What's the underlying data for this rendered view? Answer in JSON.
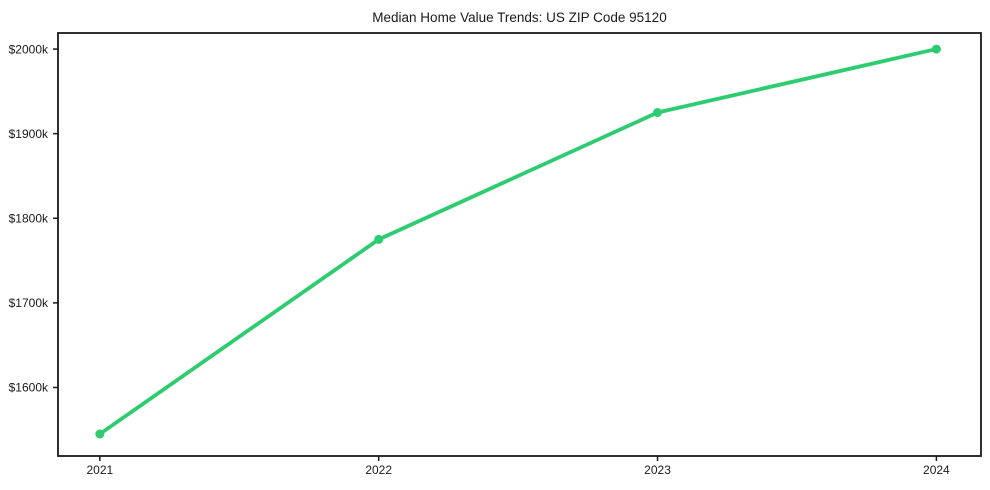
{
  "chart_data": {
    "type": "line",
    "title": "Median Home Value Trends: US ZIP Code 95120",
    "xlabel": "",
    "ylabel": "",
    "x": [
      2021,
      2022,
      2023,
      2024
    ],
    "x_tick_labels": [
      "2021",
      "2022",
      "2023",
      "2024"
    ],
    "series": [
      {
        "values": [
          1545,
          1775,
          1925,
          2000
        ],
        "color": "#2ecc71",
        "line_width": 3.8,
        "marker": "circle",
        "marker_size": 9
      }
    ],
    "y_ticks": [
      1600,
      1700,
      1800,
      1900,
      2000
    ],
    "y_tick_labels": [
      "$1600k",
      "$1700k",
      "$1800k",
      "$1900k",
      "$2000k"
    ],
    "value_unit": "USD thousands",
    "ylim": [
      1519,
      2019
    ],
    "xlim": [
      2020.85,
      2024.16
    ],
    "grid": false,
    "legend": "none",
    "background_color": "#ffffff",
    "axis_color": "#1a1a1a"
  }
}
